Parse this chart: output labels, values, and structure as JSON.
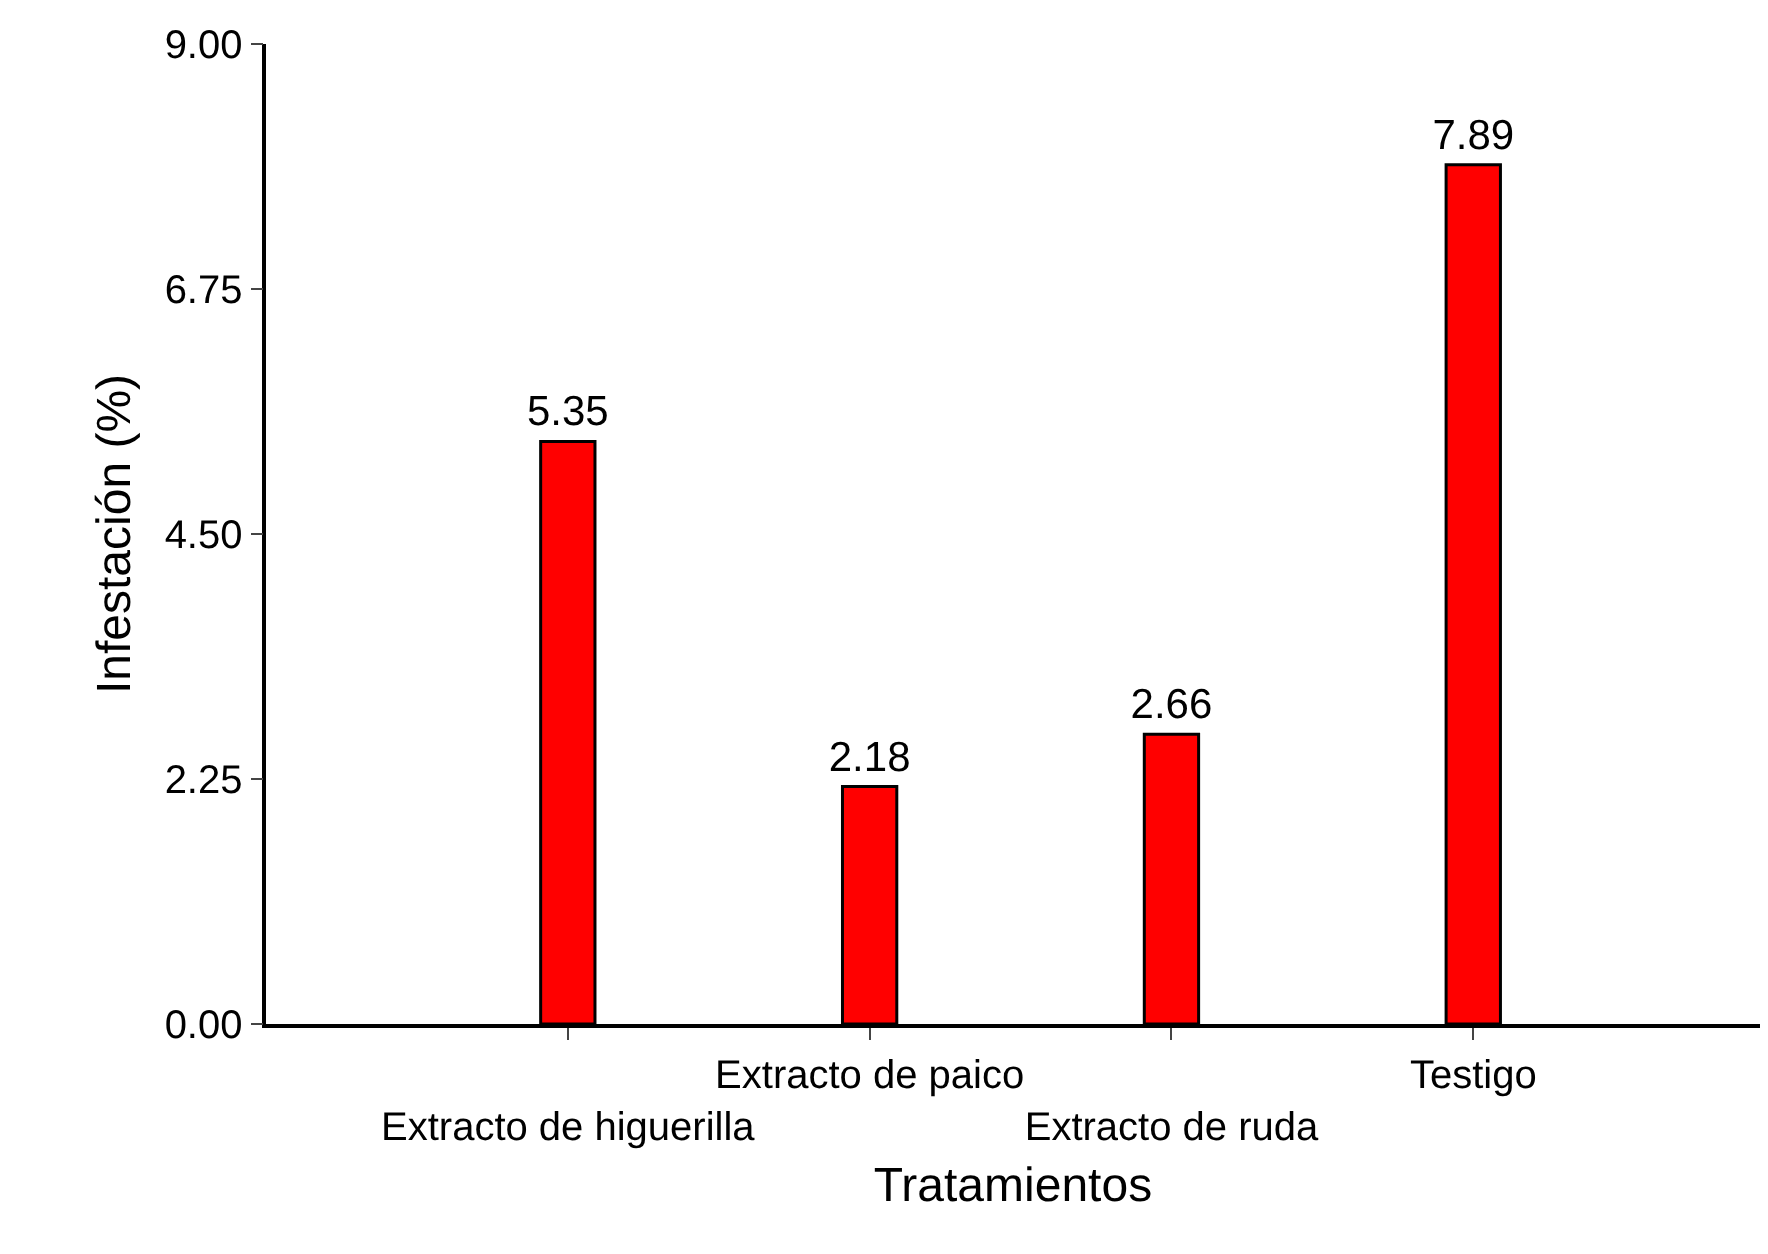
{
  "chart_data": {
    "type": "bar",
    "xlabel": "Tratamientos",
    "ylabel": "Infestación (%)",
    "categories": [
      "Extracto de higuerilla",
      "Extracto de paico",
      "Extracto de ruda",
      "Testigo"
    ],
    "values": [
      5.35,
      2.18,
      2.66,
      7.89
    ],
    "color": "#ff0000",
    "ylim": [
      0,
      9
    ],
    "yticks": [
      {
        "value": 0,
        "label": "0.00"
      },
      {
        "value": 2.25,
        "label": "2.25"
      },
      {
        "value": 4.5,
        "label": "4.50"
      },
      {
        "value": 6.75,
        "label": "6.75"
      },
      {
        "value": 9,
        "label": "9.00"
      }
    ],
    "data_labels": true
  }
}
